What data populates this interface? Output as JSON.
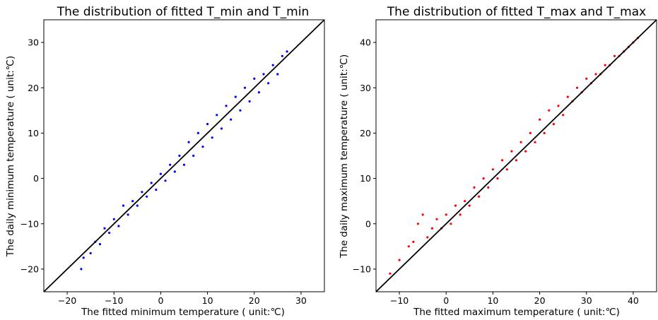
{
  "chart_data": [
    {
      "type": "scatter",
      "title": "The distribution of fitted T_min and T_min",
      "xlabel": "The fitted minimum temperature ( unit:℃)",
      "ylabel": "The daily minimum temperature ( unit:℃)",
      "xlim": [
        -25,
        35
      ],
      "ylim": [
        -25,
        35
      ],
      "xticks": [
        -20,
        -10,
        0,
        10,
        20,
        30
      ],
      "yticks": [
        -20,
        -10,
        0,
        10,
        20,
        30
      ],
      "grid": false,
      "series": [
        {
          "color": "#0000ff",
          "points": [
            [
              -17,
              -20
            ],
            [
              -16.5,
              -17.5
            ],
            [
              -15,
              -16.5
            ],
            [
              -14,
              -14
            ],
            [
              -13,
              -14.5
            ],
            [
              -12,
              -11
            ],
            [
              -11,
              -12
            ],
            [
              -10,
              -9
            ],
            [
              -9,
              -10.5
            ],
            [
              -8,
              -6
            ],
            [
              -7,
              -8
            ],
            [
              -6,
              -5
            ],
            [
              -5,
              -6
            ],
            [
              -4,
              -3
            ],
            [
              -3,
              -4
            ],
            [
              -2,
              -1
            ],
            [
              -1,
              -2.5
            ],
            [
              0,
              1
            ],
            [
              1,
              -0.5
            ],
            [
              2,
              3
            ],
            [
              3,
              1.5
            ],
            [
              4,
              5
            ],
            [
              5,
              3
            ],
            [
              6,
              8
            ],
            [
              7,
              5
            ],
            [
              8,
              10
            ],
            [
              9,
              7
            ],
            [
              10,
              12
            ],
            [
              11,
              9
            ],
            [
              12,
              14
            ],
            [
              13,
              11
            ],
            [
              14,
              16
            ],
            [
              15,
              13
            ],
            [
              16,
              18
            ],
            [
              17,
              15
            ],
            [
              18,
              20
            ],
            [
              19,
              17
            ],
            [
              20,
              22
            ],
            [
              21,
              19
            ],
            [
              22,
              23
            ],
            [
              23,
              21
            ],
            [
              24,
              25
            ],
            [
              25,
              23
            ],
            [
              26,
              27
            ],
            [
              27,
              28
            ]
          ]
        }
      ],
      "reference_line": {
        "x": [
          -25,
          35
        ],
        "y": [
          -25,
          35
        ],
        "color": "#000000"
      }
    },
    {
      "type": "scatter",
      "title": "The distribution of fitted T_max and T_max",
      "xlabel": "The fitted maximum temperature ( unit:℃)",
      "ylabel": "The daily maximum temperature ( unit:℃)",
      "xlim": [
        -15,
        45
      ],
      "ylim": [
        -15,
        45
      ],
      "xticks": [
        -10,
        0,
        10,
        20,
        30,
        40
      ],
      "yticks": [
        -10,
        0,
        10,
        20,
        30,
        40
      ],
      "grid": false,
      "series": [
        {
          "color": "#ff0000",
          "points": [
            [
              -12,
              -11
            ],
            [
              -10,
              -8
            ],
            [
              -8,
              -5
            ],
            [
              -7,
              -4
            ],
            [
              -6,
              0
            ],
            [
              -5,
              2
            ],
            [
              -4,
              -3
            ],
            [
              -3,
              -1
            ],
            [
              -2,
              1
            ],
            [
              -1,
              -1
            ],
            [
              0,
              2
            ],
            [
              1,
              0
            ],
            [
              2,
              4
            ],
            [
              3,
              2
            ],
            [
              4,
              5
            ],
            [
              5,
              4
            ],
            [
              6,
              8
            ],
            [
              7,
              6
            ],
            [
              8,
              10
            ],
            [
              9,
              8
            ],
            [
              10,
              12
            ],
            [
              11,
              10
            ],
            [
              12,
              14
            ],
            [
              13,
              12
            ],
            [
              14,
              16
            ],
            [
              15,
              14
            ],
            [
              16,
              18
            ],
            [
              17,
              16
            ],
            [
              18,
              20
            ],
            [
              19,
              18
            ],
            [
              20,
              23
            ],
            [
              21,
              20
            ],
            [
              22,
              25
            ],
            [
              23,
              22
            ],
            [
              24,
              26
            ],
            [
              25,
              24
            ],
            [
              26,
              28
            ],
            [
              27,
              27
            ],
            [
              28,
              30
            ],
            [
              29,
              29
            ],
            [
              30,
              32
            ],
            [
              31,
              31
            ],
            [
              32,
              33
            ],
            [
              33,
              33
            ],
            [
              34,
              35
            ],
            [
              35,
              35
            ],
            [
              36,
              37
            ],
            [
              37,
              37
            ],
            [
              38,
              38
            ],
            [
              39,
              39
            ],
            [
              40,
              40
            ],
            [
              41,
              41
            ]
          ]
        }
      ],
      "reference_line": {
        "x": [
          -15,
          45
        ],
        "y": [
          -15,
          45
        ],
        "color": "#000000"
      }
    }
  ]
}
